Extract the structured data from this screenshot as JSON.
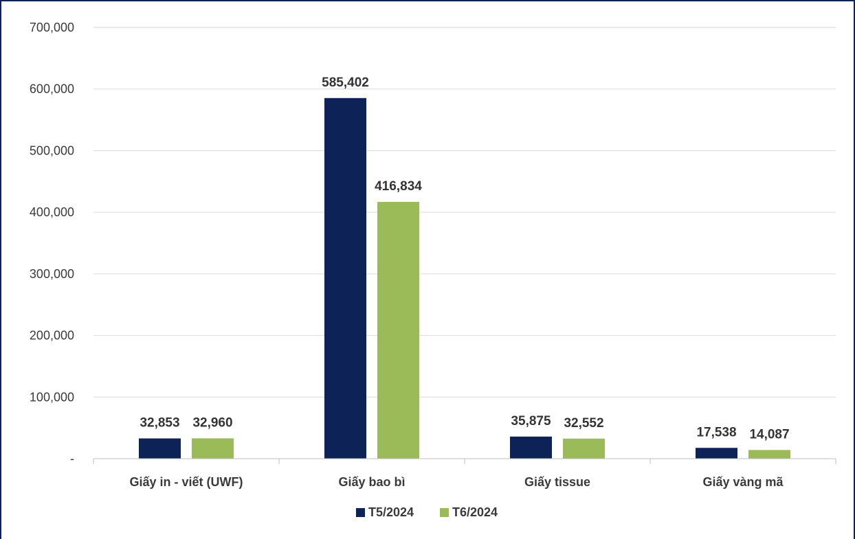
{
  "chart_data": {
    "type": "bar",
    "categories": [
      "Giấy in - viết (UWF)",
      "Giấy bao bì",
      "Giấy tissue",
      "Giấy vàng mã"
    ],
    "series": [
      {
        "name": "T5/2024",
        "color": "#0d2357",
        "values": [
          32853,
          585402,
          35875,
          17538
        ],
        "labels": [
          "32,853",
          "585,402",
          "35,875",
          "17,538"
        ]
      },
      {
        "name": "T6/2024",
        "color": "#9bbb59",
        "values": [
          32960,
          416834,
          32552,
          14087
        ],
        "labels": [
          "32,960",
          "416,834",
          "32,552",
          "14,087"
        ]
      }
    ],
    "yticks": [
      "-",
      "100,000",
      "200,000",
      "300,000",
      "400,000",
      "500,000",
      "600,000",
      "700,000"
    ],
    "ylim": [
      0,
      700000
    ],
    "grid": true,
    "legend": "bottom-center",
    "title": "",
    "xlabel": "",
    "ylabel": ""
  }
}
